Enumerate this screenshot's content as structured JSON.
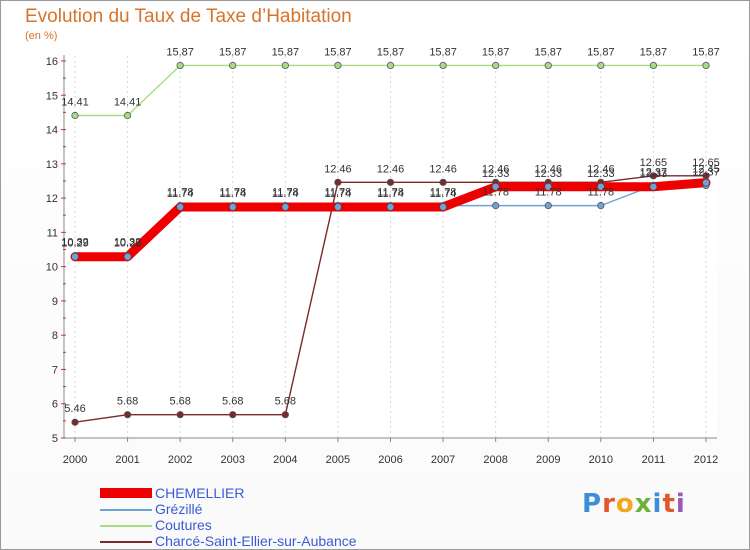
{
  "chart_data": {
    "type": "line",
    "title": "Evolution du Taux de Taxe d'Habitation",
    "ylabel": "(en %)",
    "xlabel": "",
    "ylim": [
      5,
      16
    ],
    "yticks": [
      "5",
      "6",
      "7",
      "8",
      "9",
      "10",
      "11",
      "12",
      "13",
      "14",
      "15",
      "16"
    ],
    "categories": [
      "2000",
      "2001",
      "2002",
      "2003",
      "2004",
      "2005",
      "2006",
      "2007",
      "2008",
      "2009",
      "2010",
      "2011",
      "2012"
    ],
    "series": [
      {
        "name": "Charcé-Saint-Ellier-sur-Aubance",
        "color": "#7a2a2a",
        "values": [
          5.46,
          5.68,
          5.68,
          5.68,
          5.68,
          12.46,
          12.46,
          12.46,
          12.46,
          12.46,
          12.46,
          12.65,
          12.65
        ],
        "labels": [
          "5.46",
          "5.68",
          "5.68",
          "5.68",
          "5.68",
          "12.46",
          "12.46",
          "12.46",
          "12.46",
          "12.46",
          "12.46",
          "12.65",
          "12.65"
        ]
      },
      {
        "name": "Coutures",
        "color": "#a6dd84",
        "values": [
          14.41,
          14.41,
          15.87,
          15.87,
          15.87,
          15.87,
          15.87,
          15.87,
          15.87,
          15.87,
          15.87,
          15.87,
          15.87
        ],
        "labels": [
          "14.41",
          "14.41",
          "15.87",
          "15.87",
          "15.87",
          "15.87",
          "15.87",
          "15.87",
          "15.87",
          "15.87",
          "15.87",
          "15.87",
          "15.87"
        ]
      },
      {
        "name": "Grézillé",
        "color": "#6fa3d6",
        "values": [
          10.32,
          10.32,
          11.78,
          11.78,
          11.78,
          11.78,
          11.78,
          11.78,
          11.78,
          11.78,
          11.78,
          12.37,
          12.37
        ],
        "labels": [
          "10.32",
          "10.32",
          "11.78",
          "11.78",
          "11.78",
          "11.78",
          "11.78",
          "11.78",
          "11.78",
          "11.78",
          "11.78",
          "12.37",
          "12.37"
        ]
      },
      {
        "name": "CHEMELLIER",
        "color": "#ee0000",
        "values": [
          10.29,
          10.29,
          11.74,
          11.74,
          11.74,
          11.74,
          11.74,
          11.74,
          12.33,
          12.33,
          12.33,
          12.33,
          12.45
        ],
        "labels": [
          "10.29",
          "10.29",
          "11.74",
          "11.74",
          "11.74",
          "11.74",
          "11.74",
          "11.74",
          "12.33",
          "12.33",
          "12.33",
          "12.33",
          "12.45"
        ]
      }
    ],
    "legend_order": [
      "CHEMELLIER",
      "Grézillé",
      "Coutures",
      "Charcé-Saint-Ellier-sur-Aubance"
    ]
  },
  "header": {
    "title": "Evolution du Taux de Taxe d’Habitation",
    "unit": "(en %)"
  },
  "legend": {
    "items": [
      {
        "label": "CHEMELLIER",
        "color": "#ee0000"
      },
      {
        "label": "Grézillé",
        "color": "#6fa3d6"
      },
      {
        "label": "Coutures",
        "color": "#a6dd84"
      },
      {
        "label": "Charcé-Saint-Ellier-sur-Aubance",
        "color": "#7a2a2a"
      }
    ]
  },
  "logo": {
    "letters": [
      "P",
      "r",
      "o",
      "x",
      "i",
      "t",
      "i"
    ]
  }
}
